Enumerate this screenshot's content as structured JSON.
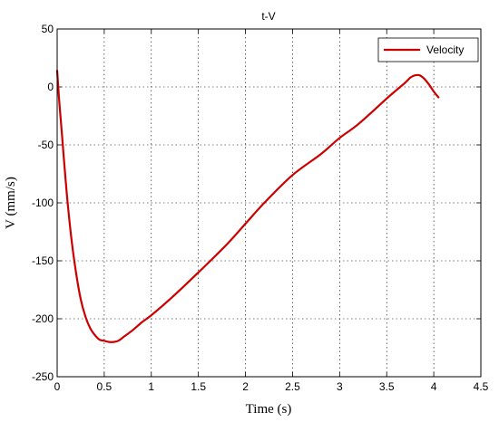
{
  "chart_data": {
    "type": "line",
    "title": "t-V",
    "xlabel": "Time (s)",
    "ylabel": "V (mm/s)",
    "xlim": [
      0,
      4.5
    ],
    "ylim": [
      -250,
      50
    ],
    "xticks": [
      "0",
      "0.5",
      "1",
      "1.5",
      "2",
      "2.5",
      "3",
      "3.5",
      "4",
      "4.5"
    ],
    "yticks": [
      "50",
      "0",
      "-50",
      "-100",
      "-150",
      "-200",
      "-250"
    ],
    "grid": true,
    "legend_position": "top-right",
    "series": [
      {
        "name": "Velocity",
        "color": "#cc0000",
        "x": [
          0.0,
          0.02,
          0.05,
          0.1,
          0.15,
          0.2,
          0.25,
          0.3,
          0.35,
          0.4,
          0.45,
          0.5,
          0.55,
          0.6,
          0.65,
          0.7,
          0.8,
          0.9,
          1.0,
          1.2,
          1.5,
          1.8,
          2.0,
          2.2,
          2.5,
          2.8,
          3.0,
          3.2,
          3.5,
          3.6,
          3.7,
          3.75,
          3.8,
          3.85,
          3.9,
          3.95,
          4.0,
          4.05
        ],
        "y": [
          14,
          -10,
          -40,
          -90,
          -130,
          -160,
          -183,
          -198,
          -208,
          -214,
          -218,
          -219,
          -220,
          -220,
          -219,
          -216,
          -210,
          -203,
          -197,
          -183,
          -160,
          -136,
          -118,
          -100,
          -76,
          -58,
          -44,
          -32,
          -10,
          -3,
          4,
          8,
          10,
          10,
          7,
          2,
          -4,
          -9
        ]
      }
    ]
  }
}
